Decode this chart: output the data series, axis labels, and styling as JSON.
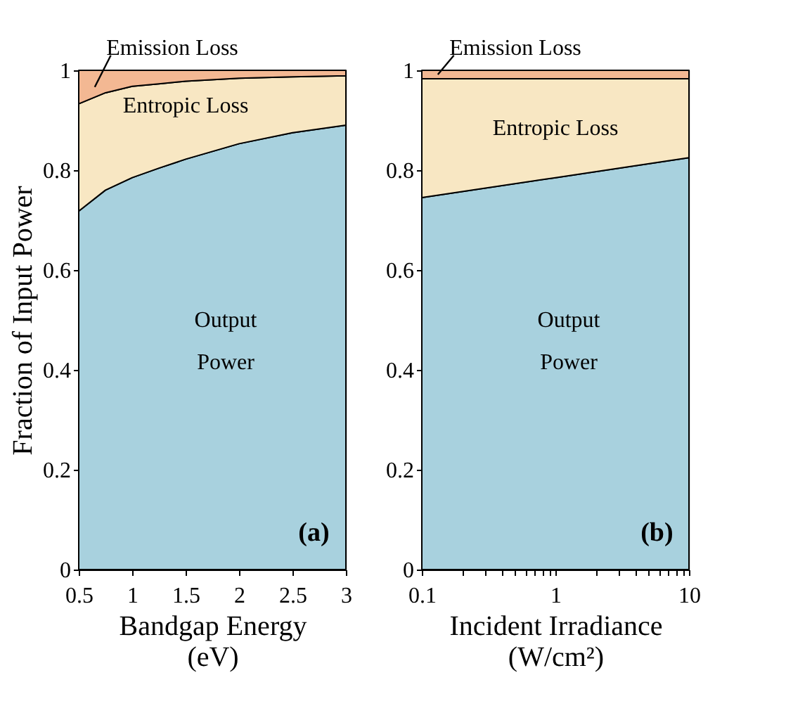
{
  "chart_data": [
    {
      "type": "area",
      "stacked": true,
      "xlabel": "Bandgap Energy (eV)",
      "ylabel": "Fraction of Input Power",
      "x": [
        0.5,
        0.75,
        1,
        1.25,
        1.5,
        2,
        2.5,
        3
      ],
      "xlim": [
        0.5,
        3
      ],
      "xticks": [
        0.5,
        1,
        1.5,
        2,
        2.5,
        3
      ],
      "ylim": [
        0,
        1
      ],
      "yticks": [
        0,
        0.2,
        0.4,
        0.6,
        0.8,
        1
      ],
      "annotations": [
        "(a)"
      ],
      "series": [
        {
          "name": "Output Power",
          "color": "#a8d1de",
          "values": [
            0.718,
            0.76,
            0.785,
            0.804,
            0.822,
            0.853,
            0.875,
            0.89
          ]
        },
        {
          "name": "Entropic Loss",
          "color": "#f8e7c3",
          "values": [
            0.215,
            0.195,
            0.183,
            0.169,
            0.156,
            0.131,
            0.112,
            0.099
          ]
        },
        {
          "name": "Emission Loss",
          "color": "#f3b893",
          "values": [
            0.067,
            0.045,
            0.032,
            0.027,
            0.022,
            0.016,
            0.013,
            0.011
          ]
        }
      ]
    },
    {
      "type": "area",
      "stacked": true,
      "xlabel": "Incident Irradiance (W/cm²)",
      "log": "x",
      "x": [
        0.1,
        1,
        10
      ],
      "xlim": [
        0.1,
        10
      ],
      "xticks": [
        0.1,
        {
          "value": 0.2,
          "label": null
        },
        {
          "value": 0.3,
          "label": null
        },
        {
          "value": 0.4,
          "label": null
        },
        {
          "value": 0.5,
          "label": null
        },
        {
          "value": 0.6,
          "label": null
        },
        {
          "value": 0.7,
          "label": null
        },
        {
          "value": 0.8,
          "label": null
        },
        {
          "value": 0.9,
          "label": null
        },
        1,
        {
          "value": 2,
          "label": null
        },
        {
          "value": 3,
          "label": null
        },
        {
          "value": 4,
          "label": null
        },
        {
          "value": 5,
          "label": null
        },
        {
          "value": 6,
          "label": null
        },
        {
          "value": 7,
          "label": null
        },
        {
          "value": 8,
          "label": null
        },
        {
          "value": 9,
          "label": null
        },
        10
      ],
      "ylim": [
        0,
        1
      ],
      "yticks": [
        0,
        0.2,
        0.4,
        0.6,
        0.8,
        1
      ],
      "annotations": [
        "(b)"
      ],
      "series": [
        {
          "name": "Output Power",
          "color": "#a8d1de",
          "values": [
            0.745,
            0.785,
            0.825
          ]
        },
        {
          "name": "Entropic Loss",
          "color": "#f8e7c3",
          "values": [
            0.238,
            0.198,
            0.158
          ]
        },
        {
          "name": "Emission Loss",
          "color": "#f3b893",
          "values": [
            0.017,
            0.017,
            0.017
          ]
        }
      ]
    }
  ]
}
